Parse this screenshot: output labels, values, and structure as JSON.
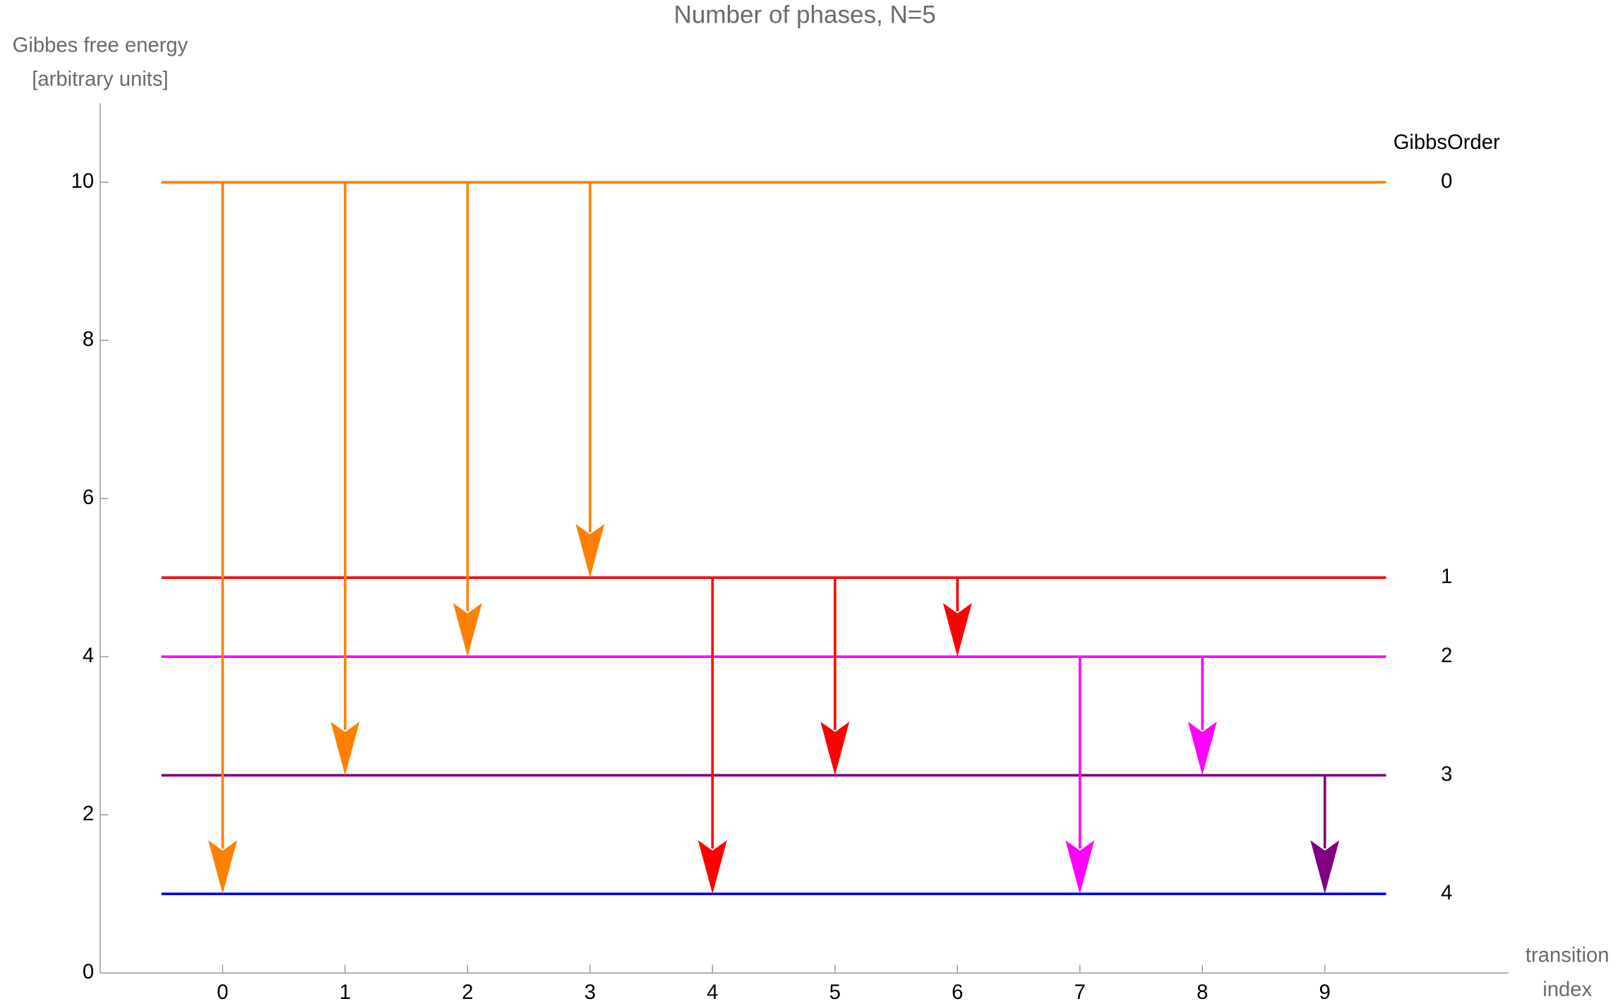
{
  "chart_data": {
    "type": "transition",
    "title": "Number of phases, N=5",
    "ylabel": [
      "Gibbes free energy",
      "[arbitrary units]"
    ],
    "xlabel": [
      "transition",
      "index"
    ],
    "legend_title": "GibbsOrder",
    "levels": [
      {
        "name": "0",
        "value": 10,
        "color": "#ff8000"
      },
      {
        "name": "1",
        "value": 5,
        "color": "#ff0000"
      },
      {
        "name": "2",
        "value": 4,
        "color": "#ff00ff"
      },
      {
        "name": "3",
        "value": 2.5,
        "color": "#800080"
      },
      {
        "name": "4",
        "value": 1,
        "color": "#0000ff"
      }
    ],
    "transitions": {
      "x": [
        0,
        1,
        2,
        3,
        4,
        5,
        6,
        7,
        8,
        9
      ],
      "from": [
        10,
        10,
        10,
        10,
        5,
        5,
        5,
        4,
        4,
        2.5
      ],
      "to": [
        1,
        2.5,
        4,
        5,
        1,
        2.5,
        4,
        1,
        2.5,
        1
      ]
    },
    "xlim": [
      -1,
      10.5
    ],
    "xticks": [
      0,
      1,
      2,
      3,
      4,
      5,
      6,
      7,
      8,
      9
    ],
    "ylim": [
      0,
      11
    ],
    "yticks": [
      0,
      2,
      4,
      6,
      8,
      10
    ]
  }
}
